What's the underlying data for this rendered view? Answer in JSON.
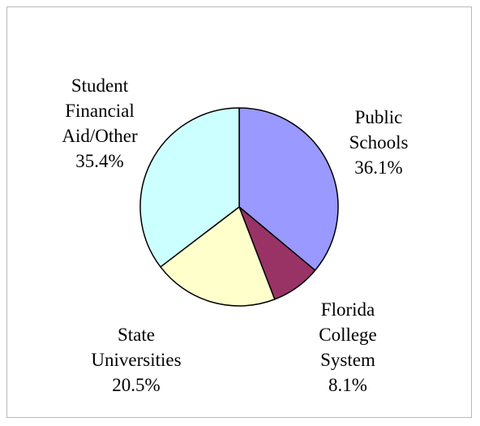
{
  "chart_data": {
    "type": "pie",
    "title": "",
    "slices": [
      {
        "label_lines": [
          "Public",
          "Schools"
        ],
        "value": 36.1,
        "value_label": "36.1%",
        "color": "#9999ff"
      },
      {
        "label_lines": [
          "Florida",
          "College",
          "System"
        ],
        "value": 8.1,
        "value_label": "8.1%",
        "color": "#993366"
      },
      {
        "label_lines": [
          "State",
          "Universities"
        ],
        "value": 20.5,
        "value_label": "20.5%",
        "color": "#ffffcc"
      },
      {
        "label_lines": [
          "Student",
          "Financial",
          "Aid/Other"
        ],
        "value": 35.4,
        "value_label": "35.4%",
        "color": "#ccffff"
      }
    ],
    "start": "12 o'clock",
    "direction": "clockwise",
    "legend": "none",
    "edge_color": "#000000"
  }
}
